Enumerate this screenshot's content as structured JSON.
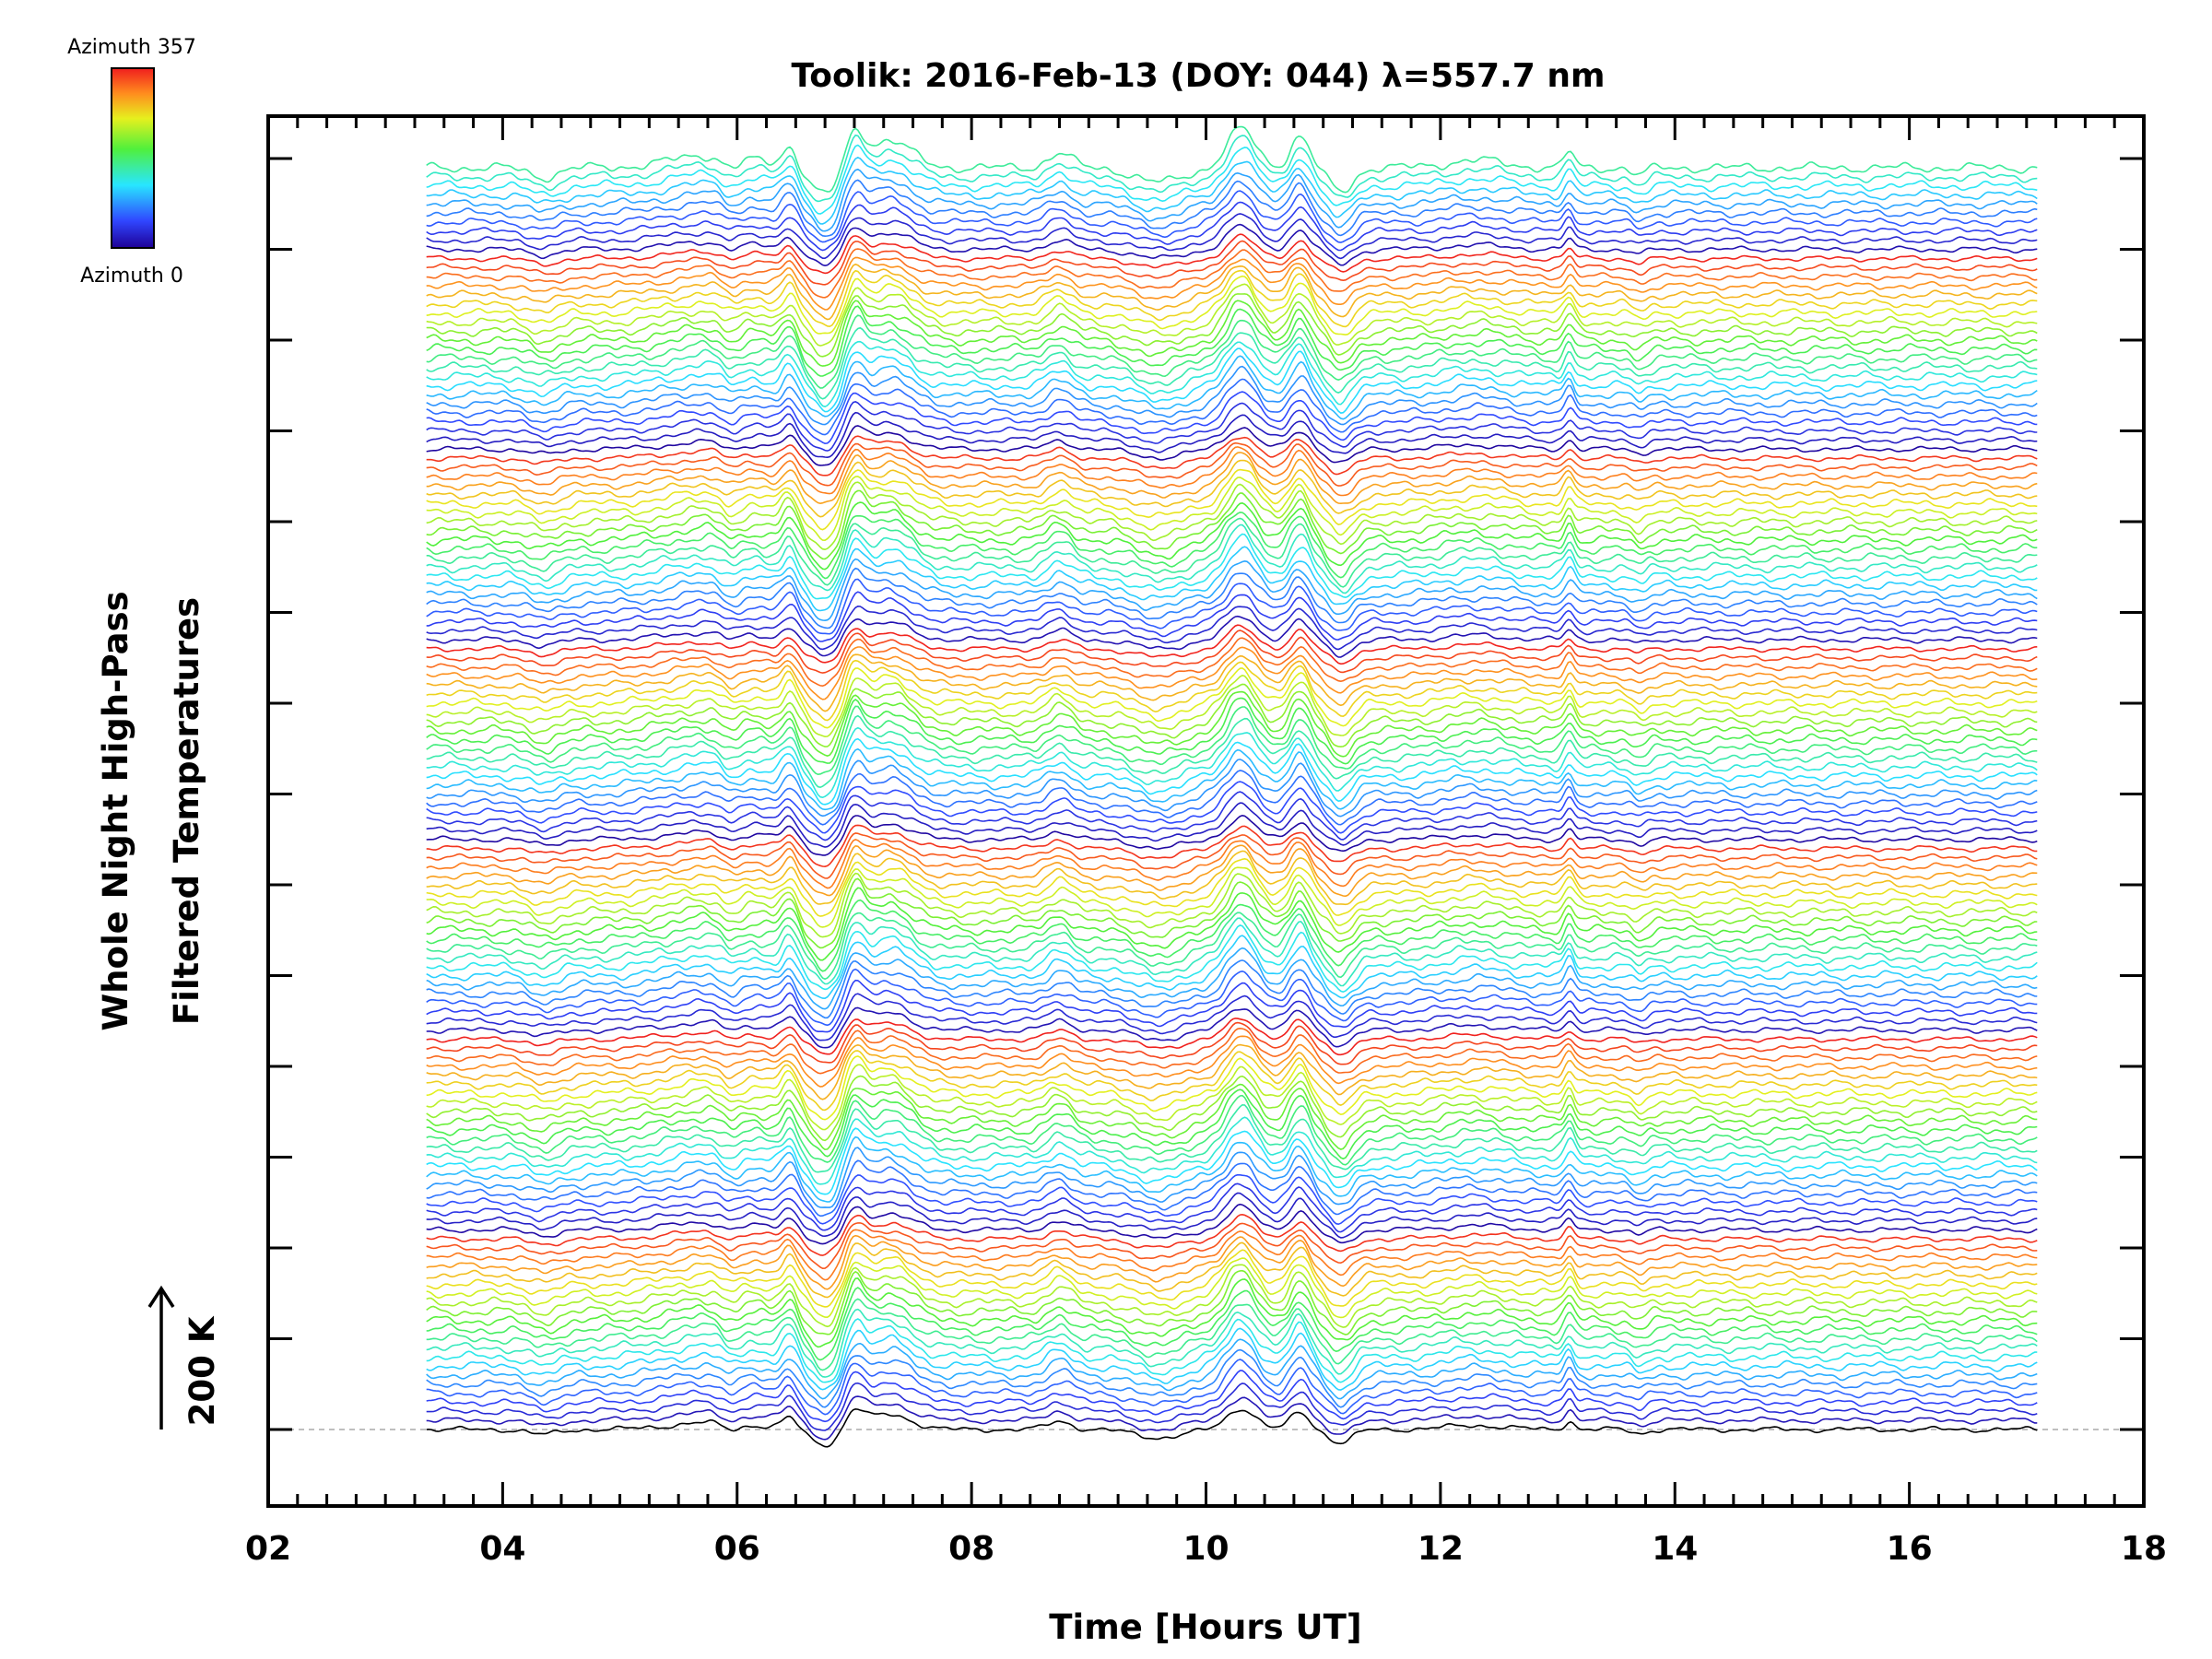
{
  "chart_data": {
    "type": "line",
    "title": "Toolik: 2016-Feb-13 (DOY: 044) λ=557.7 nm",
    "xlabel": "Time [Hours UT]",
    "ylabel_line1": "Whole Night High-Pass",
    "ylabel_line2": "Filtered Temperatures",
    "scale_bar_label": "200 K",
    "xlim": [
      2,
      18
    ],
    "x_ticks": [
      2,
      4,
      6,
      8,
      10,
      12,
      14,
      16,
      18
    ],
    "x_tick_labels": [
      "02",
      "04",
      "06",
      "08",
      "10",
      "12",
      "14",
      "16",
      "18"
    ],
    "x_data_range": [
      3.35,
      17.1
    ],
    "grid": false,
    "colorbar": {
      "top_label": "Azimuth 357",
      "bottom_label": "Azimuth 0",
      "min_azimuth": 0,
      "max_azimuth": 357,
      "colormap": "rainbow"
    },
    "series_summary": {
      "series_count": 140,
      "azimuth_cycles": 6.5,
      "stacked_offset": "each successive trace shifted upward",
      "baseline_dashed_color": "#aaaaaa"
    },
    "feature_times_hours_ut": [
      4.35,
      5.8,
      6.45,
      6.75,
      7.0,
      7.3,
      8.75,
      9.6,
      10.3,
      10.8,
      11.2,
      12.3,
      13.1,
      13.7
    ]
  }
}
